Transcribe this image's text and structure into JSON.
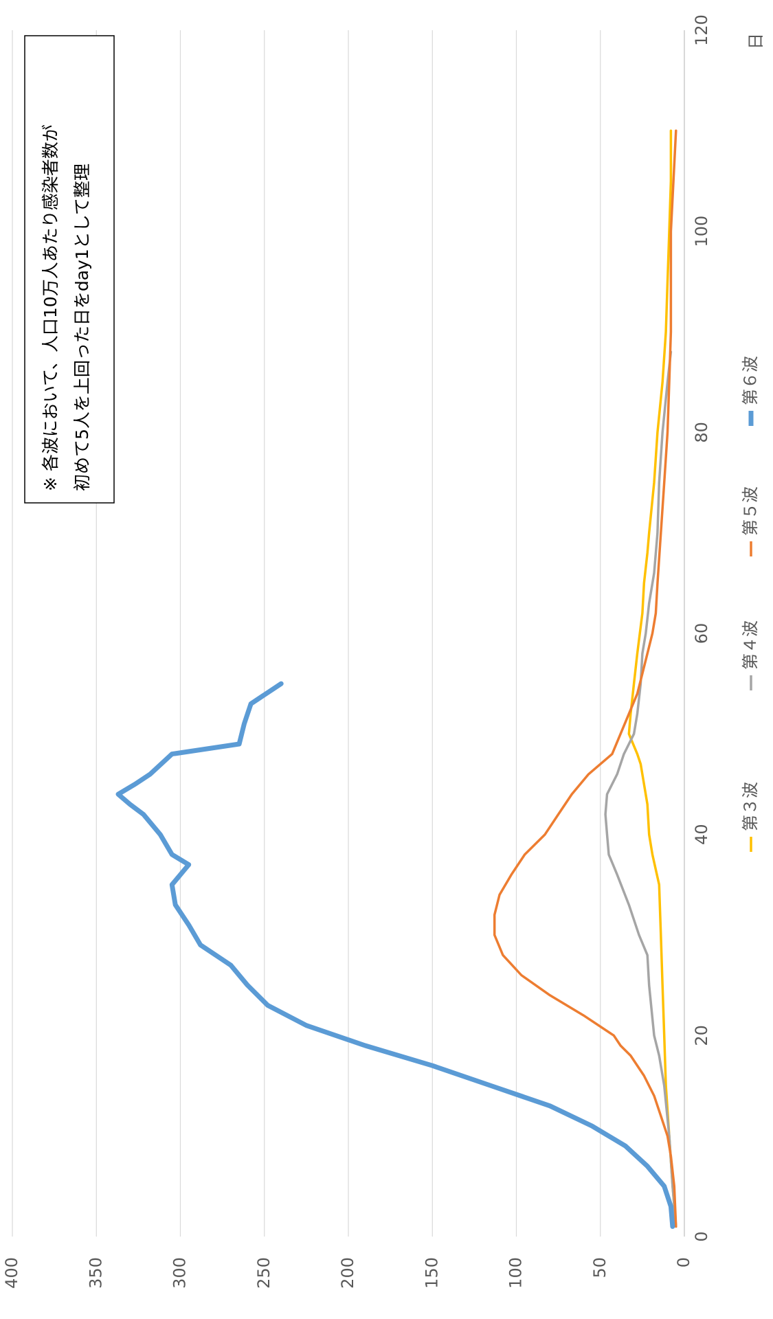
{
  "chart_data": {
    "type": "line",
    "orientation": "rotated-90-clockwise",
    "xlabel": "日",
    "ylabel": "",
    "xlim": [
      0,
      120
    ],
    "ylim": [
      0,
      400
    ],
    "x_ticks": [
      0,
      20,
      40,
      60,
      80,
      100,
      120
    ],
    "y_ticks": [
      0,
      50,
      100,
      150,
      200,
      250,
      300,
      350,
      400
    ],
    "grid": true,
    "legend_position": "bottom",
    "annotation": {
      "line1": "※ 各波において、人口10万人あたり感染者数が",
      "line2": "初めて5人を上回った日をday1として整理"
    },
    "series": [
      {
        "name": "第３波",
        "color": "#FFC000",
        "points": [
          [
            1,
            5
          ],
          [
            5,
            7
          ],
          [
            10,
            9
          ],
          [
            15,
            11
          ],
          [
            20,
            12
          ],
          [
            25,
            13
          ],
          [
            30,
            14
          ],
          [
            35,
            15
          ],
          [
            38,
            19
          ],
          [
            40,
            21
          ],
          [
            43,
            22
          ],
          [
            45,
            24
          ],
          [
            47,
            26
          ],
          [
            48,
            28
          ],
          [
            50,
            33
          ],
          [
            52,
            32
          ],
          [
            55,
            30
          ],
          [
            58,
            28
          ],
          [
            62,
            25
          ],
          [
            65,
            24
          ],
          [
            68,
            22
          ],
          [
            70,
            21
          ],
          [
            75,
            18
          ],
          [
            80,
            16
          ],
          [
            85,
            13
          ],
          [
            90,
            11
          ],
          [
            95,
            10
          ],
          [
            100,
            9
          ],
          [
            105,
            8
          ],
          [
            110,
            8
          ]
        ]
      },
      {
        "name": "第４波",
        "color": "#A5A5A5",
        "points": [
          [
            1,
            5
          ],
          [
            5,
            7
          ],
          [
            10,
            9
          ],
          [
            15,
            12
          ],
          [
            18,
            15
          ],
          [
            20,
            18
          ],
          [
            25,
            21
          ],
          [
            28,
            22
          ],
          [
            30,
            27
          ],
          [
            33,
            33
          ],
          [
            36,
            40
          ],
          [
            38,
            45
          ],
          [
            40,
            46
          ],
          [
            42,
            47
          ],
          [
            44,
            46
          ],
          [
            46,
            40
          ],
          [
            48,
            36
          ],
          [
            50,
            30
          ],
          [
            52,
            28
          ],
          [
            55,
            26
          ],
          [
            58,
            25
          ],
          [
            60,
            23
          ],
          [
            63,
            21
          ],
          [
            66,
            18
          ],
          [
            70,
            16
          ],
          [
            75,
            15
          ],
          [
            80,
            13
          ],
          [
            85,
            10
          ],
          [
            88,
            8
          ]
        ]
      },
      {
        "name": "第５波",
        "color": "#ED7D31",
        "points": [
          [
            1,
            5
          ],
          [
            5,
            6
          ],
          [
            8,
            8
          ],
          [
            10,
            10
          ],
          [
            12,
            14
          ],
          [
            14,
            18
          ],
          [
            16,
            24
          ],
          [
            18,
            32
          ],
          [
            19,
            38
          ],
          [
            20,
            42
          ],
          [
            22,
            60
          ],
          [
            24,
            80
          ],
          [
            26,
            97
          ],
          [
            28,
            108
          ],
          [
            30,
            113
          ],
          [
            32,
            113
          ],
          [
            34,
            110
          ],
          [
            36,
            103
          ],
          [
            38,
            95
          ],
          [
            40,
            83
          ],
          [
            42,
            75
          ],
          [
            44,
            67
          ],
          [
            46,
            57
          ],
          [
            48,
            43
          ],
          [
            50,
            38
          ],
          [
            52,
            33
          ],
          [
            54,
            28
          ],
          [
            56,
            25
          ],
          [
            58,
            22
          ],
          [
            60,
            19
          ],
          [
            62,
            17
          ],
          [
            65,
            16
          ],
          [
            70,
            14
          ],
          [
            75,
            12
          ],
          [
            80,
            10
          ],
          [
            85,
            9
          ],
          [
            90,
            8
          ],
          [
            100,
            8
          ],
          [
            110,
            5
          ]
        ]
      },
      {
        "name": "第６波",
        "color": "#5B9BD5",
        "points": [
          [
            1,
            7
          ],
          [
            3,
            8
          ],
          [
            5,
            12
          ],
          [
            7,
            22
          ],
          [
            9,
            35
          ],
          [
            11,
            55
          ],
          [
            13,
            80
          ],
          [
            15,
            115
          ],
          [
            17,
            150
          ],
          [
            19,
            190
          ],
          [
            21,
            225
          ],
          [
            23,
            248
          ],
          [
            25,
            260
          ],
          [
            27,
            270
          ],
          [
            29,
            288
          ],
          [
            31,
            295
          ],
          [
            33,
            303
          ],
          [
            35,
            305
          ],
          [
            36,
            300
          ],
          [
            37,
            295
          ],
          [
            38,
            305
          ],
          [
            40,
            312
          ],
          [
            42,
            322
          ],
          [
            43,
            330
          ],
          [
            44,
            337
          ],
          [
            45,
            327
          ],
          [
            46,
            318
          ],
          [
            48,
            305
          ],
          [
            49,
            265
          ],
          [
            51,
            262
          ],
          [
            53,
            258
          ],
          [
            55,
            240
          ]
        ]
      }
    ]
  }
}
